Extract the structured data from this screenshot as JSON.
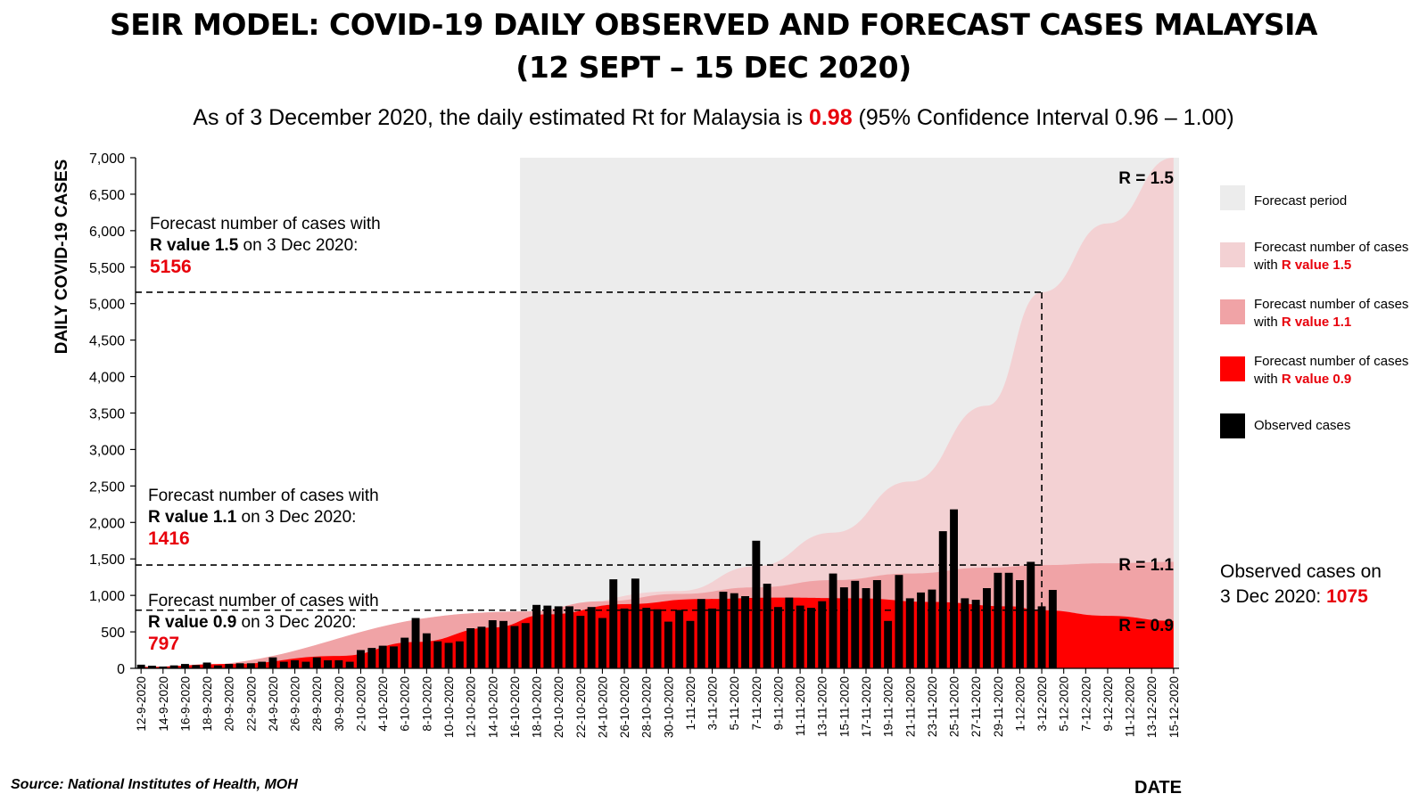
{
  "header": {
    "title_line1": "SEIR MODEL: COVID-19 DAILY OBSERVED AND FORECAST CASES MALAYSIA",
    "title_line2": "(12 SEPT – 15 DEC 2020)",
    "subtitle_pre": "As of 3 December 2020, the daily estimated Rt for Malaysia is ",
    "subtitle_rt": "0.98",
    "subtitle_post": " (95% Confidence Interval 0.96 – 1.00)"
  },
  "annotations": {
    "r15": {
      "line1": "Forecast number of cases with",
      "bold": "R value 1.5",
      "rest": " on 3 Dec 2020:",
      "value": "5156"
    },
    "r11": {
      "line1": "Forecast number of cases with",
      "bold": "R value 1.1",
      "rest": " on 3 Dec 2020:",
      "value": "1416"
    },
    "r09": {
      "line1": "Forecast number of cases with",
      "bold": "R value 0.9",
      "rest": " on 3 Dec 2020:",
      "value": "797"
    },
    "observed": {
      "line1": "Observed cases on",
      "line2": "3 Dec 2020: ",
      "value": "1075"
    }
  },
  "legend": {
    "forecast_period": "Forecast period",
    "r15_pre": "Forecast number of cases with ",
    "r15_bold": "R value 1.5",
    "r11_pre": "Forecast number of cases with ",
    "r11_bold": "R value 1.1",
    "r09_pre": "Forecast number of cases with ",
    "r09_bold": "R value 0.9",
    "observed": "Observed cases"
  },
  "footer": {
    "source": "Source: National Institutes of Health, MOH",
    "date_label": "DATE"
  },
  "colors": {
    "forecast_period": "#ececec",
    "r15": "#f3d1d3",
    "r11": "#f0a3a6",
    "r09": "#ff0000",
    "observed": "#000000"
  },
  "chart_data": {
    "type": "bar",
    "ylabel": "DAILY COVID-19 CASES",
    "xlabel": "DATE",
    "ylim": [
      0,
      7000
    ],
    "yticks": [
      0,
      500,
      1000,
      1500,
      2000,
      2500,
      3000,
      3500,
      4000,
      4500,
      5000,
      5500,
      6000,
      6500,
      7000
    ],
    "ytick_labels": [
      "0",
      "500",
      "1,000",
      "1,500",
      "2,000",
      "2,500",
      "3,000",
      "3,500",
      "4,000",
      "4,500",
      "5,000",
      "5,500",
      "6,000",
      "6,500",
      "7,000"
    ],
    "x_start": "2020-09-12",
    "x_end": "2020-12-15",
    "x_tick_labels": [
      "12-9-2020",
      "14-9-2020",
      "16-9-2020",
      "18-9-2020",
      "20-9-2020",
      "22-9-2020",
      "24-9-2020",
      "26-9-2020",
      "28-9-2020",
      "30-9-2020",
      "2-10-2020",
      "4-10-2020",
      "6-10-2020",
      "8-10-2020",
      "10-10-2020",
      "12-10-2020",
      "14-10-2020",
      "16-10-2020",
      "18-10-2020",
      "20-10-2020",
      "22-10-2020",
      "24-10-2020",
      "26-10-2020",
      "28-10-2020",
      "30-10-2020",
      "1-11-2020",
      "3-11-2020",
      "5-11-2020",
      "7-11-2020",
      "9-11-2020",
      "11-11-2020",
      "13-11-2020",
      "15-11-2020",
      "17-11-2020",
      "19-11-2020",
      "21-11-2020",
      "23-11-2020",
      "25-11-2020",
      "27-11-2020",
      "29-11-2020",
      "1-12-2020",
      "3-12-2020",
      "5-12-2020",
      "7-12-2020",
      "9-12-2020",
      "11-12-2020",
      "13-12-2020",
      "15-12-2020"
    ],
    "forecast_period": [
      "2020-10-17",
      "2020-12-15"
    ],
    "series": [
      {
        "name": "Observed cases",
        "kind": "bar",
        "values": [
          50,
          35,
          25,
          40,
          60,
          45,
          80,
          40,
          60,
          70,
          70,
          90,
          150,
          90,
          110,
          90,
          150,
          110,
          110,
          90,
          250,
          280,
          310,
          300,
          420,
          690,
          480,
          370,
          350,
          370,
          550,
          570,
          660,
          650,
          580,
          620,
          870,
          860,
          850,
          850,
          720,
          840,
          690,
          1220,
          820,
          1230,
          830,
          810,
          640,
          800,
          650,
          950,
          820,
          1050,
          1030,
          990,
          1750,
          1160,
          840,
          970,
          860,
          830,
          920,
          1300,
          1110,
          1200,
          1100,
          1210,
          650,
          1280,
          960,
          1040,
          1080,
          1880,
          2180,
          960,
          940,
          1100,
          1310,
          1310,
          1210,
          1460,
          850,
          1075
        ]
      },
      {
        "name": "Forecast number of cases with R value 1.5",
        "kind": "area",
        "points": [
          [
            "2020-09-12",
            0
          ],
          [
            "2020-10-17",
            780
          ],
          [
            "2020-10-31",
            1060
          ],
          [
            "2020-11-07",
            1400
          ],
          [
            "2020-11-14",
            1860
          ],
          [
            "2020-11-21",
            2560
          ],
          [
            "2020-11-28",
            3600
          ],
          [
            "2020-12-03",
            5156
          ],
          [
            "2020-12-09",
            6100
          ],
          [
            "2020-12-15",
            7000
          ]
        ]
      },
      {
        "name": "Forecast number of cases with R value 1.1",
        "kind": "area",
        "points": [
          [
            "2020-09-12",
            0
          ],
          [
            "2020-10-17",
            780
          ],
          [
            "2020-10-24",
            920
          ],
          [
            "2020-10-31",
            1020
          ],
          [
            "2020-11-07",
            1110
          ],
          [
            "2020-11-14",
            1210
          ],
          [
            "2020-11-21",
            1300
          ],
          [
            "2020-11-28",
            1380
          ],
          [
            "2020-12-03",
            1416
          ],
          [
            "2020-12-09",
            1440
          ],
          [
            "2020-12-15",
            1460
          ]
        ]
      },
      {
        "name": "Forecast number of cases with R value 0.9",
        "kind": "area",
        "points": [
          [
            "2020-09-12",
            20
          ],
          [
            "2020-09-20",
            60
          ],
          [
            "2020-09-30",
            170
          ],
          [
            "2020-10-07",
            360
          ],
          [
            "2020-10-14",
            560
          ],
          [
            "2020-10-19",
            740
          ],
          [
            "2020-10-26",
            880
          ],
          [
            "2020-11-02",
            950
          ],
          [
            "2020-11-09",
            970
          ],
          [
            "2020-11-16",
            960
          ],
          [
            "2020-11-23",
            910
          ],
          [
            "2020-11-30",
            850
          ],
          [
            "2020-12-03",
            797
          ],
          [
            "2020-12-09",
            720
          ],
          [
            "2020-12-15",
            650
          ]
        ]
      }
    ],
    "reference_lines": [
      {
        "label": "R = 1.5",
        "y": 5156,
        "at": "2020-12-03"
      },
      {
        "label": "R = 1.1",
        "y": 1416,
        "at": "2020-12-03"
      },
      {
        "label": "R = 0.9",
        "y": 797,
        "at": "2020-12-03"
      }
    ],
    "curve_labels": [
      "R = 1.5",
      "R = 1.1",
      "R = 0.9"
    ]
  }
}
